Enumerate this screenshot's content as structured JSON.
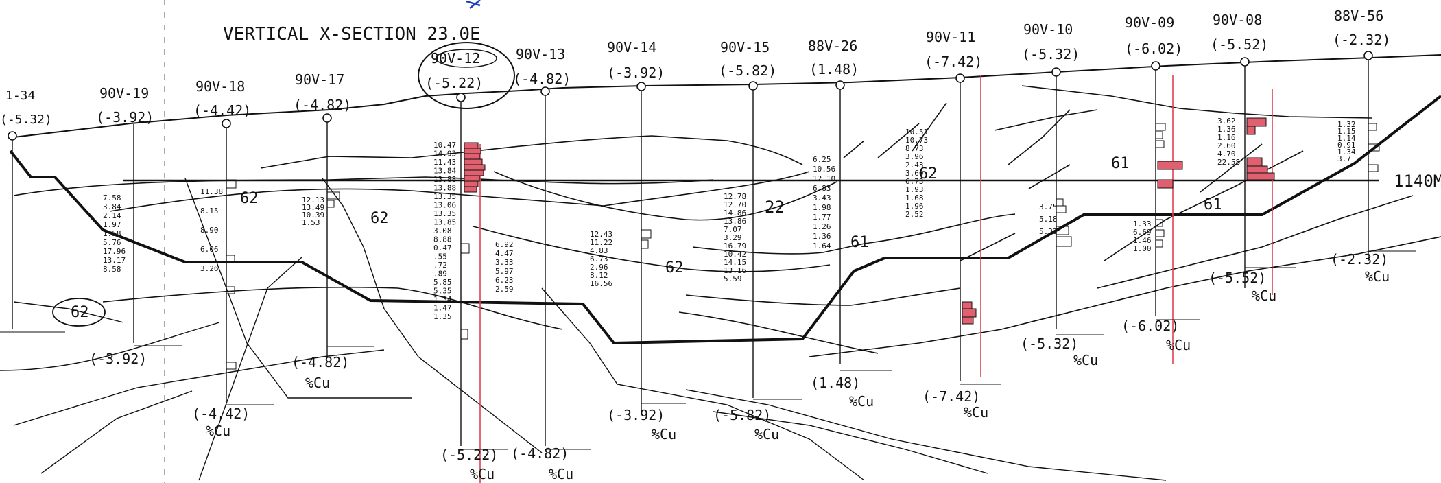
{
  "title": "VERTICAL X-SECTION 23.0E",
  "level_label": "1140M",
  "unit_label": "%Cu",
  "colors": {
    "ink": "#111111",
    "highlight": "#e06070",
    "redline": "#e04050",
    "blue": "#2040c0"
  },
  "holes": [
    {
      "id": "1-34",
      "collar": "(-5.32)"
    },
    {
      "id": "90V-19",
      "collar": "(-3.92)",
      "bottom": "(-3.92)"
    },
    {
      "id": "90V-18",
      "collar": "(-4.42)",
      "bottom": "(-4.42)"
    },
    {
      "id": "90V-17",
      "collar": "(-4.82)",
      "bottom": "(-4.82)"
    },
    {
      "id": "90V-12",
      "collar": "(-5.22)",
      "bottom": "(-5.22)"
    },
    {
      "id": "90V-13",
      "collar": "(-4.82)",
      "bottom": "(-4.82)"
    },
    {
      "id": "90V-14",
      "collar": "(-3.92)",
      "bottom": "(-3.92)"
    },
    {
      "id": "90V-15",
      "collar": "(-5.82)",
      "bottom": "(-5.82)"
    },
    {
      "id": "88V-26",
      "collar": "(1.48)",
      "bottom": "(1.48)"
    },
    {
      "id": "90V-11",
      "collar": "(-7.42)",
      "bottom": "(-7.42)"
    },
    {
      "id": "90V-10",
      "collar": "(-5.32)",
      "bottom": "(-5.32)"
    },
    {
      "id": "90V-09",
      "collar": "(-6.02)",
      "bottom": "(-6.02)"
    },
    {
      "id": "90V-08",
      "collar": "(-5.52)",
      "bottom": "(-5.52)"
    },
    {
      "id": "88V-56",
      "collar": "(-2.32)",
      "bottom": "(-2.32)"
    }
  ],
  "zones": [
    "62",
    "62",
    "62",
    "22",
    "61",
    "62",
    "61",
    "61",
    "62"
  ],
  "assays": {
    "h90v18": [
      "11.38",
      "8.15",
      "8.90",
      "6.06",
      "3.26"
    ],
    "h90v17": [
      "12.13",
      "13.49",
      "10.39",
      "1.53"
    ],
    "h90v19": [
      "7.58",
      "3.84",
      "2.14",
      "1.97",
      "1.58",
      "5.76",
      "17.96",
      "13.17",
      "8.58"
    ],
    "h90v12": [
      "10.47",
      "14.93",
      "11.43",
      "13.84",
      "13.88",
      "13.88",
      "13.35",
      "13.06",
      "13.35",
      "13.85",
      "3.08",
      "8.88",
      "0.47",
      ".55",
      ".72",
      ".89",
      "5.85",
      "5.35",
      "1.34",
      "1.47",
      "1.35"
    ],
    "h90v13": [
      "6.92",
      "4.47",
      "3.33",
      "5.97",
      "6.23",
      "2.59"
    ],
    "h90v14": [
      "12.43",
      "11.22",
      "4.83",
      "6.73",
      "2.96",
      "8.12",
      "16.56"
    ],
    "h90v15": [
      "12.78",
      "12.70",
      "14.86",
      "13.86",
      "7.07",
      "3.29",
      "16.79",
      "10.42",
      "14.15",
      "13.16",
      "5.59"
    ],
    "h88v26": [
      "6.25",
      "10.56",
      "12.10",
      "6.83",
      "3.43",
      "1.98",
      "1.77",
      "1.26",
      "1.36",
      "1.64"
    ],
    "h90v11": [
      "10.51",
      "10.73",
      "8.73",
      "3.96",
      "2.43",
      "3.60",
      "6.73",
      "1.93",
      "1.68",
      "1.96",
      "2.52"
    ],
    "h90v10": [
      "3.75",
      "5.18",
      "5.33"
    ],
    "h90v09": [
      "1.33",
      "6.69",
      "1.46",
      "1.00"
    ],
    "h90v08": [
      "3.62",
      "1.36",
      "1.16",
      "2.60",
      "4.70",
      "22.58"
    ],
    "h88v56": [
      "1.32",
      "1.15",
      "1.14",
      "0.91",
      "1.34",
      "3.7"
    ]
  }
}
